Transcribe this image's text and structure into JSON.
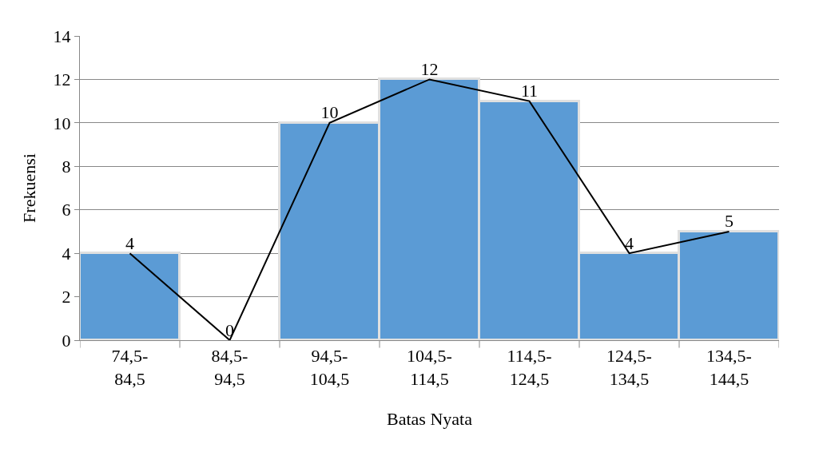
{
  "chart_data": {
    "type": "bar",
    "xlabel": "Batas Nyata",
    "ylabel": "Frekuensi",
    "categories": [
      "74,5-\n84,5",
      "84,5-\n94,5",
      "94,5-\n104,5",
      "104,5-\n114,5",
      "114,5-\n124,5",
      "124,5-\n134,5",
      "134,5-\n144,5"
    ],
    "values": [
      4,
      0,
      10,
      12,
      11,
      4,
      5
    ],
    "color": "#5b9bd5",
    "series": [
      {
        "type": "line",
        "color": "#000000",
        "values": [
          4,
          0,
          10,
          12,
          11,
          4,
          5
        ],
        "value_labels": [
          "4",
          "0",
          "10",
          "12",
          "11",
          "4",
          "5"
        ]
      }
    ],
    "ylim": [
      0,
      14
    ],
    "yticks": [
      0,
      2,
      4,
      6,
      8,
      10,
      12,
      14
    ],
    "grid": "y",
    "marker": "none"
  }
}
